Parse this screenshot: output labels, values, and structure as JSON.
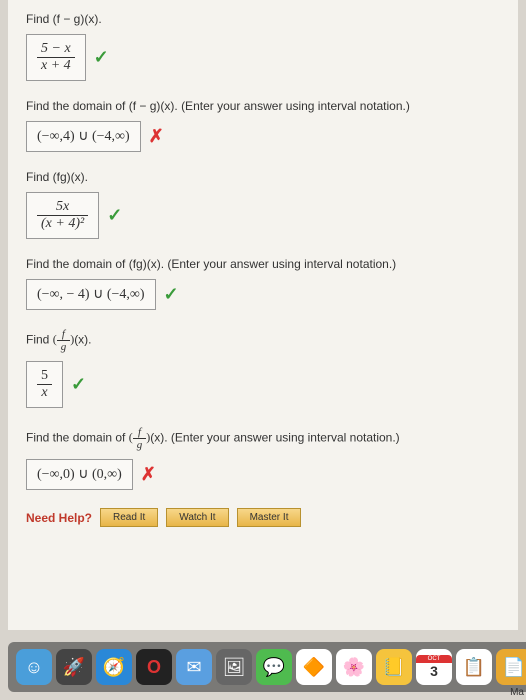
{
  "q1": {
    "prompt": "Find  (f − g)(x).",
    "num": "5 − x",
    "den": "x + 4",
    "mark": "✓"
  },
  "q2": {
    "prompt": "Find the domain of  (f − g)(x).  (Enter your answer using interval notation.)",
    "answer": "(−∞,4) ∪ (−4,∞)",
    "mark": "✗"
  },
  "q3": {
    "prompt": "Find  (fg)(x).",
    "num": "5x",
    "den": "(x + 4)²",
    "mark": "✓"
  },
  "q4": {
    "prompt": "Find the domain of  (fg)(x).  (Enter your answer using interval notation.)",
    "answer": "(−∞, − 4) ∪ (−4,∞)",
    "mark": "✓"
  },
  "q5": {
    "prompt_pre": "Find  ",
    "prompt_frac_num": "f",
    "prompt_frac_den": "g",
    "prompt_post": "(x).",
    "num": "5",
    "den": "x",
    "mark": "✓"
  },
  "q6": {
    "prompt_pre": "Find the domain of  ",
    "prompt_frac_num": "f",
    "prompt_frac_den": "g",
    "prompt_post": "(x).  (Enter your answer using interval notation.)",
    "answer": "(−∞,0) ∪ (0,∞)",
    "mark": "✗"
  },
  "help": {
    "label": "Need Help?",
    "read": "Read It",
    "watch": "Watch It",
    "master": "Master It"
  },
  "calendar": {
    "month": "OCT",
    "day": "3"
  },
  "corner": "Ma"
}
